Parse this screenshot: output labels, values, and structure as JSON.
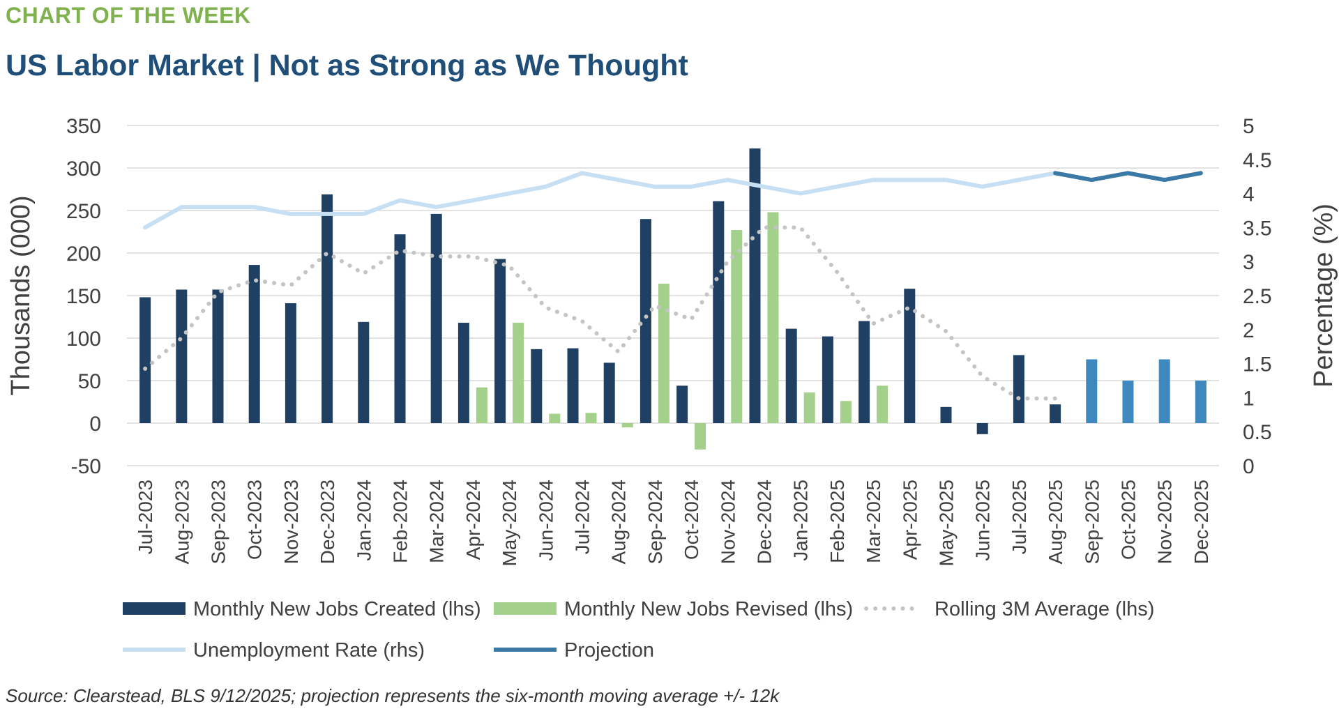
{
  "header": {
    "kicker": "CHART OF THE WEEK",
    "title": "US Labor Market | Not as Strong as We Thought"
  },
  "source": "Source: Clearstead, BLS 9/12/2025; projection represents the six-month moving average +/- 12k",
  "colors": {
    "created": "#1f3f63",
    "revised": "#a3d08a",
    "rolling": "#c4c4c4",
    "unemployment": "#c7dff3",
    "projection_line": "#3a78a5",
    "projection_bar": "#3d88bd",
    "grid": "#d9d9d9"
  },
  "chart_data": {
    "type": "bar",
    "categories": [
      "Jul-2023",
      "Aug-2023",
      "Sep-2023",
      "Oct-2023",
      "Nov-2023",
      "Dec-2023",
      "Jan-2024",
      "Feb-2024",
      "Mar-2024",
      "Apr-2024",
      "May-2024",
      "Jun-2024",
      "Jul-2024",
      "Aug-2024",
      "Sep-2024",
      "Oct-2024",
      "Nov-2024",
      "Dec-2024",
      "Jan-2025",
      "Feb-2025",
      "Mar-2025",
      "Apr-2025",
      "May-2025",
      "Jun-2025",
      "Jul-2025",
      "Aug-2025",
      "Sep-2025",
      "Oct-2025",
      "Nov-2025",
      "Dec-2025"
    ],
    "ylabel": "Thousands (000)",
    "y2label": "Percentage (%)",
    "ylim": [
      -50,
      350
    ],
    "y2lim": [
      0,
      5
    ],
    "yticks": [
      "350",
      "300",
      "250",
      "200",
      "150",
      "100",
      "50",
      "0",
      "-50"
    ],
    "y2ticks": [
      "5",
      "4.5",
      "4",
      "3.5",
      "3",
      "2.5",
      "2",
      "1.5",
      "1",
      "0.5",
      "0"
    ],
    "grid": true,
    "legend_position": "bottom",
    "series": [
      {
        "name": "Monthly New Jobs Created (lhs)",
        "type": "bar",
        "axis": "left",
        "values": [
          148,
          157,
          157,
          186,
          141,
          269,
          119,
          222,
          246,
          118,
          193,
          87,
          88,
          71,
          240,
          44,
          261,
          323,
          111,
          102,
          120,
          158,
          19,
          -13,
          80,
          22,
          null,
          null,
          null,
          null
        ]
      },
      {
        "name": "Monthly New Jobs Revised (lhs)",
        "type": "bar",
        "axis": "left",
        "values": [
          null,
          null,
          null,
          null,
          null,
          null,
          null,
          null,
          null,
          42,
          118,
          11,
          12,
          -5,
          164,
          -31,
          227,
          248,
          36,
          26,
          44,
          null,
          null,
          null,
          null,
          null,
          null,
          null,
          null,
          null
        ]
      },
      {
        "name": "Rolling 3M Average (lhs)",
        "type": "line",
        "style": "dotted",
        "axis": "left",
        "values": [
          64,
          100,
          154,
          168,
          162,
          200,
          176,
          203,
          196,
          196,
          185,
          136,
          120,
          84,
          138,
          122,
          190,
          230,
          230,
          178,
          117,
          136,
          108,
          55,
          29,
          29,
          null,
          null,
          null,
          null
        ]
      },
      {
        "name": "Unemployment Rate (rhs)",
        "type": "line",
        "axis": "right",
        "values": [
          3.5,
          3.8,
          3.8,
          3.8,
          3.7,
          3.7,
          3.7,
          3.9,
          3.8,
          3.9,
          4.0,
          4.1,
          4.3,
          4.2,
          4.1,
          4.1,
          4.2,
          4.1,
          4.0,
          4.1,
          4.2,
          4.2,
          4.2,
          4.1,
          4.2,
          4.3,
          null,
          null,
          null,
          null
        ]
      },
      {
        "name": "Projection",
        "type": "line+bar",
        "axis": "right",
        "values": [
          null,
          null,
          null,
          null,
          null,
          null,
          null,
          null,
          null,
          null,
          null,
          null,
          null,
          null,
          null,
          null,
          null,
          null,
          null,
          null,
          null,
          null,
          null,
          null,
          null,
          4.3,
          4.2,
          4.3,
          4.2,
          4.3
        ],
        "bar_values": [
          null,
          null,
          null,
          null,
          null,
          null,
          null,
          null,
          null,
          null,
          null,
          null,
          null,
          null,
          null,
          null,
          null,
          null,
          null,
          null,
          null,
          null,
          null,
          null,
          null,
          null,
          75,
          50,
          75,
          50
        ]
      }
    ]
  }
}
